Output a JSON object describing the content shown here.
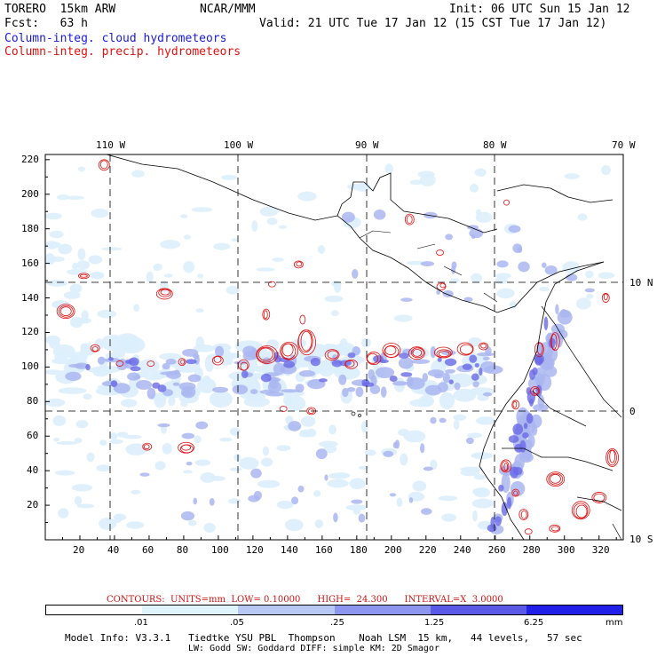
{
  "header": {
    "model": "TORERO  15km ARW",
    "org": "NCAR/MMM",
    "init": "Init: 06 UTC Sun 15 Jan 12",
    "fcst": "Fcst:   63 h",
    "valid": "Valid: 21 UTC Tue 17 Jan 12 (15 CST Tue 17 Jan 12)",
    "field1": "Column-integ. cloud hydrometeors",
    "field2": "Column-integ. precip. hydrometeors"
  },
  "map": {
    "lon_labels": [
      "110 W",
      "100 W",
      "90 W",
      "80 W",
      "70 W"
    ],
    "lat_labels": [
      "10 N",
      "0",
      "10 S"
    ],
    "x_ticks": [
      "20",
      "40",
      "60",
      "80",
      "100",
      "120",
      "140",
      "160",
      "180",
      "200",
      "220",
      "240",
      "260",
      "280",
      "300",
      "320"
    ],
    "y_ticks": [
      "20",
      "40",
      "60",
      "80",
      "100",
      "120",
      "140",
      "160",
      "180",
      "200",
      "220"
    ]
  },
  "contour_info": {
    "units": "CONTOURS:  UNITS=mm  LOW= 0.10000",
    "high": "HIGH=  24.300",
    "interval": "INTERVAL=X  3.0000"
  },
  "colorbar": {
    "unit": "mm",
    "labels": [
      ".01",
      ".05",
      ".25",
      "1.25",
      "6.25"
    ],
    "colors": [
      "#ffffff",
      "#dff4fb",
      "#b8c8f4",
      "#8c96ee",
      "#5a5ae6",
      "#2020e8"
    ]
  },
  "footer": {
    "line1": "Model Info: V3.3.1   Tiedtke YSU PBL  Thompson    Noah LSM  15 km,   44 levels,   57 sec",
    "line2": "LW: Godd SW: Goddard DIFF: simple KM: 2D Smagor"
  },
  "colors": {
    "cloud_light": "#dbeefc",
    "cloud_mid": "#aab6f0",
    "cloud_dark": "#6a6ae6",
    "precip": "#e01010",
    "coast": "#000000"
  }
}
